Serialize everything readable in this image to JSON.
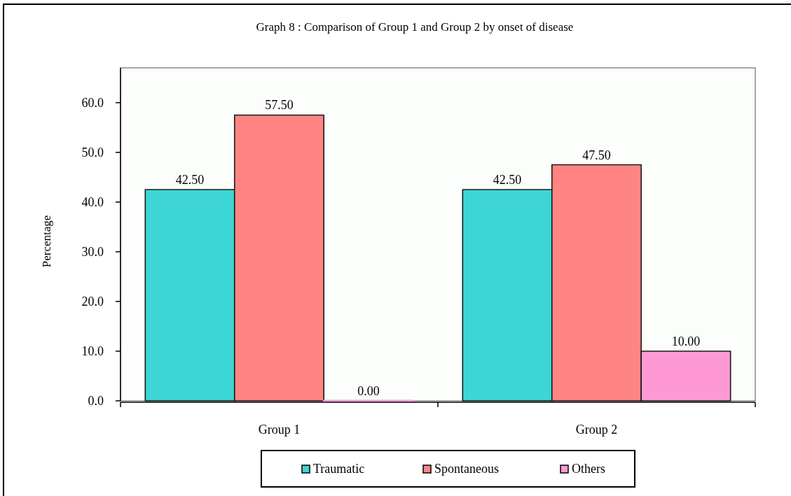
{
  "chart_data": {
    "type": "bar",
    "title": "Graph 8 : Comparison of Group 1 and Group 2 by onset of disease",
    "ylabel": "Percentage",
    "categories": [
      "Group 1",
      "Group 2"
    ],
    "series": [
      {
        "name": "Traumatic",
        "color": "#3dd5d5",
        "values": [
          42.5,
          42.5
        ],
        "value_labels": [
          "42.50",
          "42.50"
        ]
      },
      {
        "name": "Spontaneous",
        "color": "#ff8484",
        "values": [
          57.5,
          47.5
        ],
        "value_labels": [
          "57.50",
          "47.50"
        ]
      },
      {
        "name": "Others",
        "color": "#ff99d6",
        "values": [
          0,
          10
        ],
        "value_labels": [
          "0.00",
          "10.00"
        ]
      }
    ],
    "ylim": [
      0,
      67
    ],
    "yticks": [
      {
        "value": 0,
        "label": "0.0"
      },
      {
        "value": 10,
        "label": "10.0"
      },
      {
        "value": 20,
        "label": "20.0"
      },
      {
        "value": 30,
        "label": "30.0"
      },
      {
        "value": 40,
        "label": "40.0"
      },
      {
        "value": 50,
        "label": "50.0"
      },
      {
        "value": 60,
        "label": "60.0"
      }
    ],
    "legend": "bottom"
  }
}
